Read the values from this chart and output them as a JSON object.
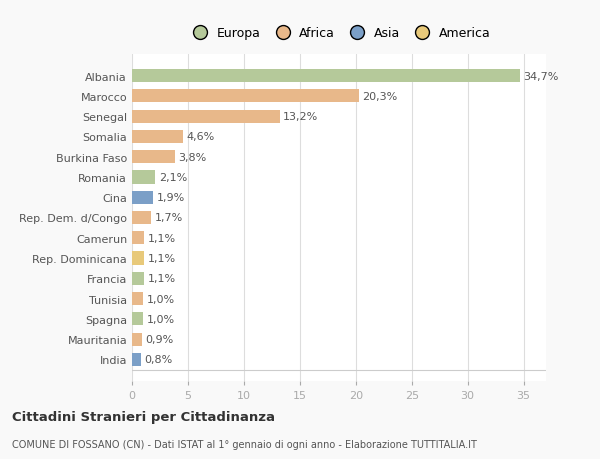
{
  "categories": [
    "Albania",
    "Marocco",
    "Senegal",
    "Somalia",
    "Burkina Faso",
    "Romania",
    "Cina",
    "Rep. Dem. d/Congo",
    "Camerun",
    "Rep. Dominicana",
    "Francia",
    "Tunisia",
    "Spagna",
    "Mauritania",
    "India"
  ],
  "values": [
    34.7,
    20.3,
    13.2,
    4.6,
    3.8,
    2.1,
    1.9,
    1.7,
    1.1,
    1.1,
    1.1,
    1.0,
    1.0,
    0.9,
    0.8
  ],
  "labels": [
    "34,7%",
    "20,3%",
    "13,2%",
    "4,6%",
    "3,8%",
    "2,1%",
    "1,9%",
    "1,7%",
    "1,1%",
    "1,1%",
    "1,1%",
    "1,0%",
    "1,0%",
    "0,9%",
    "0,8%"
  ],
  "colors": [
    "#b5c99a",
    "#e8b88a",
    "#e8b88a",
    "#e8b88a",
    "#e8b88a",
    "#b5c99a",
    "#7b9fc7",
    "#e8b88a",
    "#e8b88a",
    "#e8c97a",
    "#b5c99a",
    "#e8b88a",
    "#b5c99a",
    "#e8b88a",
    "#7b9fc7"
  ],
  "continent_colors": {
    "Europa": "#b5c99a",
    "Africa": "#e8b88a",
    "Asia": "#7b9fc7",
    "America": "#e8c97a"
  },
  "xlim": [
    0,
    37
  ],
  "xticks": [
    0,
    5,
    10,
    15,
    20,
    25,
    30,
    35
  ],
  "title": "Cittadini Stranieri per Cittadinanza",
  "subtitle": "COMUNE DI FOSSANO (CN) - Dati ISTAT al 1° gennaio di ogni anno - Elaborazione TUTTITALIA.IT",
  "background_color": "#f9f9f9",
  "bar_background": "#ffffff",
  "grid_color": "#dddddd",
  "label_fontsize": 8,
  "tick_fontsize": 8,
  "ytick_fontsize": 8
}
